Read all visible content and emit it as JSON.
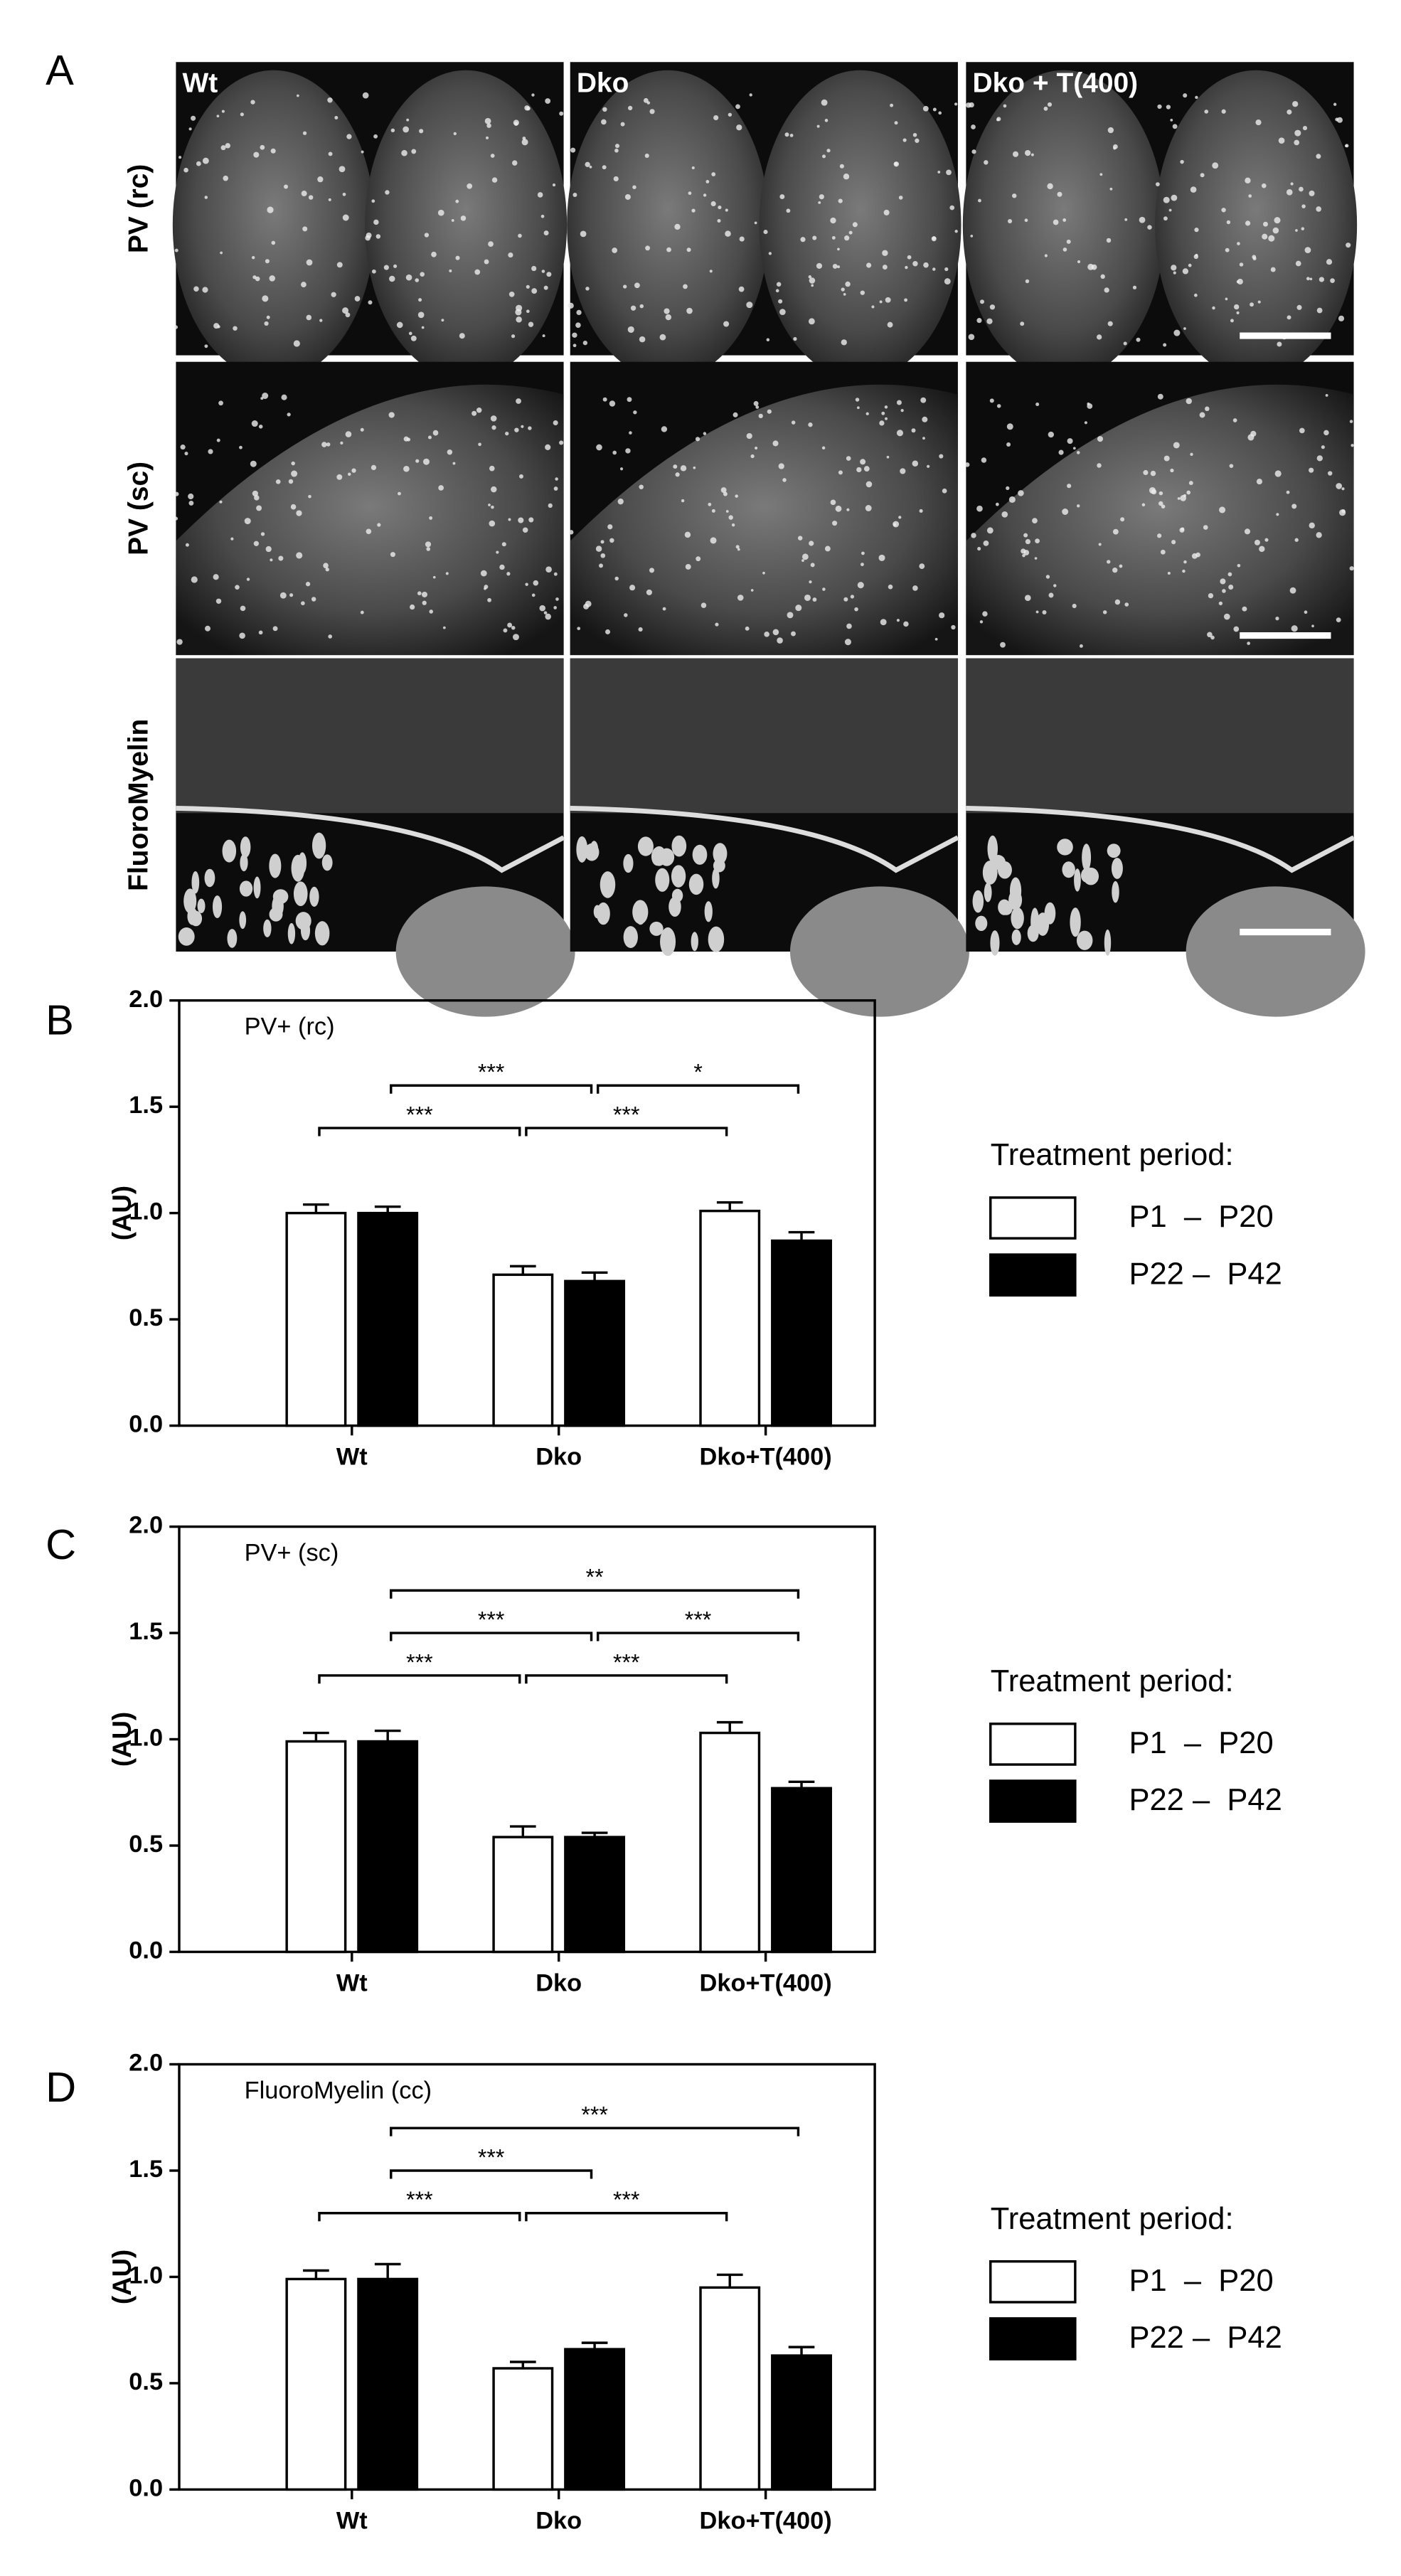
{
  "panel_labels": [
    "A",
    "B",
    "C",
    "D"
  ],
  "panel_a": {
    "columns": [
      "Wt",
      "Dko",
      "Dko + T(400)"
    ],
    "rows": [
      "PV (rc)",
      "PV (sc)",
      "FluoroMyelin"
    ]
  },
  "chart_data": [
    {
      "type": "bar",
      "title": "PV+ (rc)",
      "y_label": "(AU)",
      "categories": [
        "Wt",
        "Dko",
        "Dko+T(400)"
      ],
      "series": [
        {
          "name": "P1  –  P20",
          "color": "#ffffff",
          "values": [
            1.0,
            0.71,
            1.01
          ],
          "errors": [
            0.04,
            0.04,
            0.04
          ]
        },
        {
          "name": "P22 –  P42",
          "color": "#000000",
          "values": [
            1.0,
            0.68,
            0.87
          ],
          "errors": [
            0.03,
            0.04,
            0.04
          ]
        }
      ],
      "ylim": [
        0,
        2
      ],
      "yticks": [
        {
          "value": 0,
          "label": "0.0"
        },
        {
          "value": 0.5,
          "label": "0.5"
        },
        {
          "value": 1,
          "label": "1.0"
        },
        {
          "value": 1.5,
          "label": "1.5"
        },
        {
          "value": 2,
          "label": "2.0"
        }
      ],
      "legend_title": "Treatment period:",
      "legend": "right",
      "annotations": [
        {
          "text": "***",
          "y": 1.6,
          "from": [
            0,
            1
          ],
          "to": [
            1,
            1
          ]
        },
        {
          "text": "*",
          "y": 1.6,
          "from": [
            1,
            1
          ],
          "to": [
            2,
            1
          ]
        },
        {
          "text": "***",
          "y": 1.4,
          "from": [
            0,
            0
          ],
          "to": [
            1,
            0
          ]
        },
        {
          "text": "***",
          "y": 1.4,
          "from": [
            1,
            0
          ],
          "to": [
            2,
            0
          ]
        }
      ]
    },
    {
      "type": "bar",
      "title": "PV+ (sc)",
      "y_label": "(AU)",
      "categories": [
        "Wt",
        "Dko",
        "Dko+T(400)"
      ],
      "series": [
        {
          "name": "P1  –  P20",
          "color": "#ffffff",
          "values": [
            0.99,
            0.54,
            1.03
          ],
          "errors": [
            0.04,
            0.05,
            0.05
          ]
        },
        {
          "name": "P22 –  P42",
          "color": "#000000",
          "values": [
            0.99,
            0.54,
            0.77
          ],
          "errors": [
            0.05,
            0.02,
            0.03
          ]
        }
      ],
      "ylim": [
        0,
        2
      ],
      "yticks": [
        {
          "value": 0,
          "label": "0.0"
        },
        {
          "value": 0.5,
          "label": "0.5"
        },
        {
          "value": 1,
          "label": "1.0"
        },
        {
          "value": 1.5,
          "label": "1.5"
        },
        {
          "value": 2,
          "label": "2.0"
        }
      ],
      "legend_title": "Treatment period:",
      "legend": "right",
      "annotations": [
        {
          "text": "**",
          "y": 1.7,
          "from": [
            0,
            1
          ],
          "to": [
            2,
            1
          ]
        },
        {
          "text": "***",
          "y": 1.5,
          "from": [
            0,
            1
          ],
          "to": [
            1,
            1
          ]
        },
        {
          "text": "***",
          "y": 1.5,
          "from": [
            1,
            1
          ],
          "to": [
            2,
            1
          ]
        },
        {
          "text": "***",
          "y": 1.3,
          "from": [
            0,
            0
          ],
          "to": [
            1,
            0
          ]
        },
        {
          "text": "***",
          "y": 1.3,
          "from": [
            1,
            0
          ],
          "to": [
            2,
            0
          ]
        }
      ]
    },
    {
      "type": "bar",
      "title": "FluoroMyelin (cc)",
      "y_label": "(AU)",
      "categories": [
        "Wt",
        "Dko",
        "Dko+T(400)"
      ],
      "series": [
        {
          "name": "P1  –  P20",
          "color": "#ffffff",
          "values": [
            0.99,
            0.57,
            0.95
          ],
          "errors": [
            0.04,
            0.03,
            0.06
          ]
        },
        {
          "name": "P22 –  P42",
          "color": "#000000",
          "values": [
            0.99,
            0.66,
            0.63
          ],
          "errors": [
            0.07,
            0.03,
            0.04
          ]
        }
      ],
      "ylim": [
        0,
        2
      ],
      "yticks": [
        {
          "value": 0,
          "label": "0.0"
        },
        {
          "value": 0.5,
          "label": "0.5"
        },
        {
          "value": 1,
          "label": "1.0"
        },
        {
          "value": 1.5,
          "label": "1.5"
        },
        {
          "value": 2,
          "label": "2.0"
        }
      ],
      "legend_title": "Treatment period:",
      "legend": "right",
      "annotations": [
        {
          "text": "***",
          "y": 1.7,
          "from": [
            0,
            1
          ],
          "to": [
            2,
            1
          ]
        },
        {
          "text": "***",
          "y": 1.5,
          "from": [
            0,
            1
          ],
          "to": [
            1,
            1
          ]
        },
        {
          "text": "***",
          "y": 1.3,
          "from": [
            0,
            0
          ],
          "to": [
            1,
            0
          ]
        },
        {
          "text": "***",
          "y": 1.3,
          "from": [
            1,
            0
          ],
          "to": [
            2,
            0
          ]
        }
      ]
    }
  ]
}
